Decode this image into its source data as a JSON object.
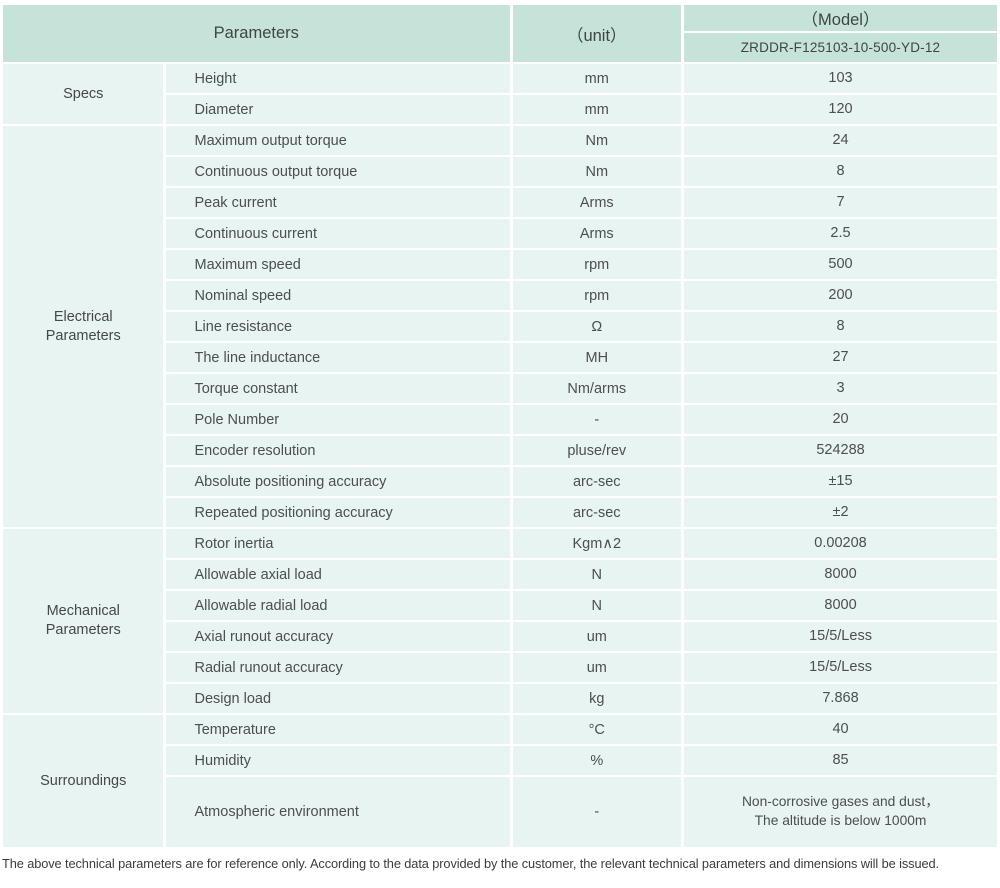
{
  "header": {
    "parameters_label": "Parameters",
    "unit_label": "（unit）",
    "model_label": "（Model）",
    "model_value": "ZRDDR-F125103-10-500-YD-12"
  },
  "colors": {
    "header_bg": "#c6e3da",
    "row_bg": "#e8f4f1",
    "text": "#474747"
  },
  "sections": [
    {
      "category": "Specs",
      "rows": [
        {
          "param": "Height",
          "unit": "mm",
          "value": "103"
        },
        {
          "param": "Diameter",
          "unit": "mm",
          "value": "120"
        }
      ]
    },
    {
      "category": "Electrical\nParameters",
      "rows": [
        {
          "param": "Maximum output torque",
          "unit": "Nm",
          "value": "24"
        },
        {
          "param": "Continuous output torque",
          "unit": "Nm",
          "value": "8"
        },
        {
          "param": "Peak current",
          "unit": "Arms",
          "value": "7"
        },
        {
          "param": "Continuous current",
          "unit": "Arms",
          "value": "2.5"
        },
        {
          "param": "Maximum speed",
          "unit": "rpm",
          "value": "500"
        },
        {
          "param": "Nominal speed",
          "unit": "rpm",
          "value": "200"
        },
        {
          "param": "Line resistance",
          "unit": "Ω",
          "value": "8"
        },
        {
          "param": "The line inductance",
          "unit": "MH",
          "value": "27"
        },
        {
          "param": "Torque constant",
          "unit": "Nm/arms",
          "value": "3"
        },
        {
          "param": "Pole Number",
          "unit": "-",
          "value": "20"
        },
        {
          "param": "Encoder resolution",
          "unit": "pluse/rev",
          "value": "524288"
        },
        {
          "param": "Absolute positioning accuracy",
          "unit": "arc-sec",
          "value": "±15"
        },
        {
          "param": "Repeated positioning accuracy",
          "unit": "arc-sec",
          "value": "±2"
        }
      ]
    },
    {
      "category": "Mechanical\nParameters",
      "rows": [
        {
          "param": "Rotor inertia",
          "unit": "Kgm∧2",
          "value": "0.00208"
        },
        {
          "param": "Allowable axial load",
          "unit": "N",
          "value": "8000"
        },
        {
          "param": "Allowable radial load",
          "unit": "N",
          "value": "8000"
        },
        {
          "param": "Axial runout accuracy",
          "unit": "um",
          "value": "15/5/Less"
        },
        {
          "param": "Radial runout accuracy",
          "unit": "um",
          "value": "15/5/Less"
        },
        {
          "param": "Design load",
          "unit": "kg",
          "value": "7.868"
        }
      ]
    },
    {
      "category": "Surroundings",
      "rows": [
        {
          "param": "Temperature",
          "unit": "°C",
          "value": "40"
        },
        {
          "param": "Humidity",
          "unit": "%",
          "value": "85"
        },
        {
          "param": "Atmospheric environment",
          "unit": "-",
          "value": "Non-corrosive gases and dust，\nThe altitude is below 1000m"
        }
      ]
    }
  ],
  "footer": {
    "note": "The above technical parameters are for reference only. According to the data provided by the customer, the relevant technical parameters and dimensions will be issued."
  }
}
